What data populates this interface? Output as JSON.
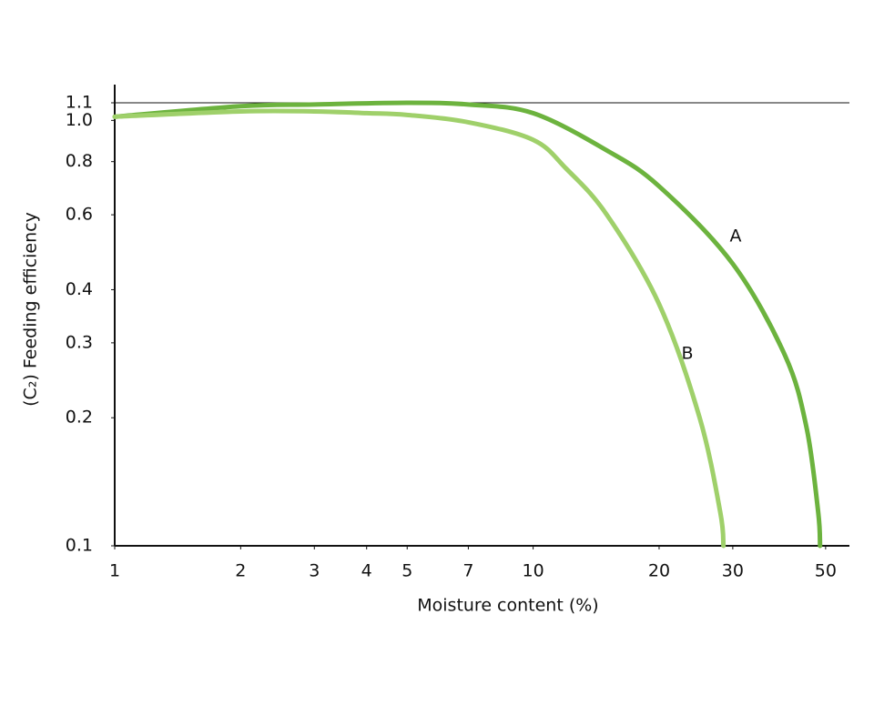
{
  "chart_data": {
    "type": "line",
    "x_label": "Moisture content (%)",
    "y_label": "(C₂) Feeding efficiency",
    "x_scale": "log",
    "y_scale": "log",
    "xlim": [
      1,
      57
    ],
    "ylim": [
      0.1,
      1.1
    ],
    "xticks": [
      1,
      2,
      3,
      4,
      5,
      7,
      10,
      20,
      30,
      50
    ],
    "yticks": [
      0.1,
      0.2,
      0.3,
      0.4,
      0.6,
      0.8,
      {
        "value": 1,
        "label": "1.0"
      },
      1.1
    ],
    "series": [
      {
        "name": "A",
        "color": "#6cb33e",
        "x": [
          1,
          2,
          3,
          5,
          7,
          10,
          15,
          20,
          30,
          40,
          45,
          48,
          48.5
        ],
        "y": [
          1.02,
          1.08,
          1.09,
          1.1,
          1.09,
          1.04,
          0.85,
          0.7,
          0.46,
          0.28,
          0.19,
          0.12,
          0.1
        ]
      },
      {
        "name": "B",
        "color": "#9fd06a",
        "x": [
          1,
          2,
          3,
          4,
          5,
          7,
          10,
          12,
          15,
          20,
          25,
          28,
          28.5
        ],
        "y": [
          1.02,
          1.05,
          1.05,
          1.04,
          1.03,
          0.99,
          0.9,
          0.77,
          0.6,
          0.37,
          0.2,
          0.12,
          0.1
        ]
      }
    ]
  }
}
